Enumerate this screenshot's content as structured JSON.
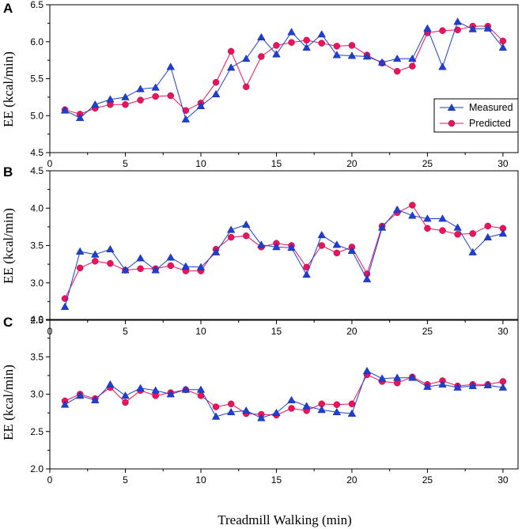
{
  "colors": {
    "measured": "#1f3fcf",
    "predicted": "#e8145e",
    "axis": "#000000"
  },
  "legend": {
    "measured": "Measured",
    "predicted": "Predicted",
    "placement": "inside panel A, lower-right"
  },
  "shared_xlabel": "Treadmill Walking (min)",
  "chart_data": [
    {
      "type": "line",
      "panel": "A",
      "title": "",
      "xlabel": "",
      "ylabel": "EE (kcal/min)",
      "xlim": [
        0,
        31
      ],
      "ylim": [
        4.5,
        6.5
      ],
      "xticks": [
        0,
        5,
        10,
        15,
        20,
        25,
        30
      ],
      "yticks": [
        4.5,
        5.0,
        5.5,
        6.0,
        6.5
      ],
      "ytick_labels": [
        "4.5",
        "5.0",
        "5.5",
        "6.0",
        "6.5"
      ],
      "x": [
        1,
        2,
        3,
        4,
        5,
        6,
        7,
        8,
        9,
        10,
        11,
        12,
        13,
        14,
        15,
        16,
        17,
        18,
        19,
        20,
        21,
        22,
        23,
        24,
        25,
        26,
        27,
        28,
        29,
        30
      ],
      "series": [
        {
          "name": "Measured",
          "marker": "triangle",
          "values": [
            5.07,
            4.97,
            5.15,
            5.22,
            5.25,
            5.36,
            5.38,
            5.66,
            4.95,
            5.13,
            5.29,
            5.65,
            5.77,
            6.06,
            5.83,
            6.13,
            5.92,
            6.1,
            5.82,
            5.81,
            5.8,
            5.72,
            5.77,
            5.77,
            6.18,
            5.66,
            6.27,
            6.17,
            6.18,
            5.92
          ]
        },
        {
          "name": "Predicted",
          "marker": "circle",
          "values": [
            5.08,
            5.02,
            5.1,
            5.15,
            5.15,
            5.21,
            5.26,
            5.27,
            5.07,
            5.17,
            5.45,
            5.87,
            5.39,
            5.8,
            5.95,
            5.99,
            6.02,
            5.98,
            5.94,
            5.95,
            5.82,
            5.71,
            5.6,
            5.67,
            6.12,
            6.15,
            6.16,
            6.21,
            6.21,
            6.01
          ]
        }
      ]
    },
    {
      "type": "line",
      "panel": "B",
      "title": "",
      "xlabel": "",
      "ylabel": "EE (kcal/min)",
      "xlim": [
        0,
        31
      ],
      "ylim": [
        2.5,
        4.5
      ],
      "xticks": [
        0,
        5,
        10,
        15,
        20,
        25,
        30
      ],
      "yticks": [
        2.5,
        3.0,
        3.5,
        4.0,
        4.5
      ],
      "ytick_labels": [
        "2.5",
        "3.0",
        "3.5",
        "4.0",
        "4.5"
      ],
      "x": [
        1,
        2,
        3,
        4,
        5,
        6,
        7,
        8,
        9,
        10,
        11,
        12,
        13,
        14,
        15,
        16,
        17,
        18,
        19,
        20,
        21,
        22,
        23,
        24,
        25,
        26,
        27,
        28,
        29,
        30
      ],
      "series": [
        {
          "name": "Measured",
          "marker": "triangle",
          "values": [
            2.68,
            3.42,
            3.38,
            3.45,
            3.17,
            3.33,
            3.17,
            3.34,
            3.22,
            3.21,
            3.41,
            3.71,
            3.78,
            3.51,
            3.48,
            3.47,
            3.11,
            3.64,
            3.51,
            3.43,
            3.05,
            3.74,
            3.98,
            3.9,
            3.86,
            3.86,
            3.74,
            3.41,
            3.61,
            3.66
          ]
        },
        {
          "name": "Predicted",
          "marker": "circle",
          "values": [
            2.79,
            3.2,
            3.29,
            3.26,
            3.17,
            3.19,
            3.19,
            3.23,
            3.16,
            3.16,
            3.45,
            3.61,
            3.63,
            3.48,
            3.53,
            3.5,
            3.21,
            3.5,
            3.4,
            3.48,
            3.12,
            3.76,
            3.94,
            4.04,
            3.73,
            3.7,
            3.65,
            3.66,
            3.76,
            3.73
          ]
        }
      ]
    },
    {
      "type": "line",
      "panel": "C",
      "title": "",
      "xlabel": "Treadmill Walking (min)",
      "ylabel": "EE (kcal/min)",
      "xlim": [
        0,
        31
      ],
      "ylim": [
        2.0,
        4.0
      ],
      "xticks": [
        0,
        5,
        10,
        15,
        20,
        25,
        30
      ],
      "yticks": [
        2.0,
        2.5,
        3.0,
        3.5,
        4.0
      ],
      "ytick_labels": [
        "2.0",
        "2.5",
        "3.0",
        "3.5",
        "4.0"
      ],
      "x": [
        1,
        2,
        3,
        4,
        5,
        6,
        7,
        8,
        9,
        10,
        11,
        12,
        13,
        14,
        15,
        16,
        17,
        18,
        19,
        20,
        21,
        22,
        23,
        24,
        25,
        26,
        27,
        28,
        29,
        30
      ],
      "series": [
        {
          "name": "Measured",
          "marker": "triangle",
          "values": [
            2.86,
            2.98,
            2.92,
            3.13,
            2.98,
            3.08,
            3.05,
            3.0,
            3.06,
            3.06,
            2.7,
            2.76,
            2.78,
            2.68,
            2.75,
            2.92,
            2.84,
            2.79,
            2.76,
            2.74,
            3.31,
            3.21,
            3.22,
            3.22,
            3.1,
            3.13,
            3.09,
            3.11,
            3.12,
            3.09
          ]
        },
        {
          "name": "Predicted",
          "marker": "circle",
          "values": [
            2.91,
            3.0,
            2.94,
            3.09,
            2.89,
            3.05,
            2.98,
            3.02,
            3.06,
            2.98,
            2.83,
            2.87,
            2.74,
            2.73,
            2.72,
            2.81,
            2.78,
            2.87,
            2.86,
            2.87,
            3.26,
            3.17,
            3.15,
            3.23,
            3.13,
            3.18,
            3.11,
            3.13,
            3.13,
            3.17
          ]
        }
      ]
    }
  ]
}
